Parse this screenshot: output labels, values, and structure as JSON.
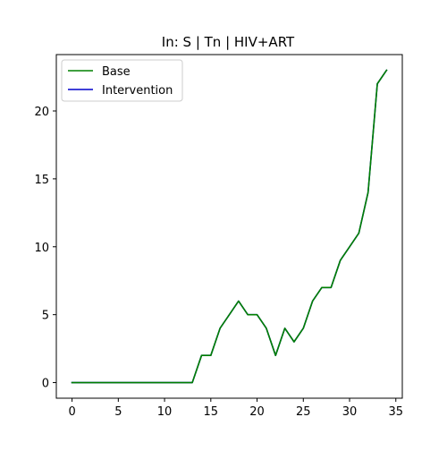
{
  "chart_data": {
    "type": "line",
    "title": "In: S | Tn | HIV+ART",
    "xlabel": "",
    "ylabel": "",
    "xlim": [
      -1.7,
      35.7
    ],
    "ylim": [
      -1.15,
      24.15
    ],
    "xticks": [
      0,
      5,
      10,
      15,
      20,
      25,
      30,
      35
    ],
    "yticks": [
      0,
      5,
      10,
      15,
      20
    ],
    "x": [
      0,
      1,
      2,
      3,
      4,
      5,
      6,
      7,
      8,
      9,
      10,
      11,
      12,
      13,
      14,
      15,
      16,
      17,
      18,
      19,
      20,
      21,
      22,
      23,
      24,
      25,
      26,
      27,
      28,
      29,
      30,
      31,
      32,
      33,
      34
    ],
    "series": [
      {
        "name": "Base",
        "color": "#008000",
        "values": [
          0,
          0,
          0,
          0,
          0,
          0,
          0,
          0,
          0,
          0,
          0,
          0,
          0,
          0,
          2,
          2,
          4,
          5,
          6,
          5,
          5,
          4,
          2,
          4,
          3,
          4,
          6,
          7,
          7,
          9,
          10,
          11,
          14,
          22,
          23
        ]
      },
      {
        "name": "Intervention",
        "color": "#0000cc",
        "values": [
          0,
          0,
          0,
          0,
          0,
          0,
          0,
          0,
          0,
          0,
          0,
          0,
          0,
          0,
          2,
          2,
          4,
          5,
          6,
          5,
          5,
          4,
          2,
          4,
          3,
          4,
          6,
          7,
          7,
          9,
          10,
          11,
          14,
          22,
          23
        ]
      }
    ],
    "legend_position": "top-left",
    "grid": false
  }
}
